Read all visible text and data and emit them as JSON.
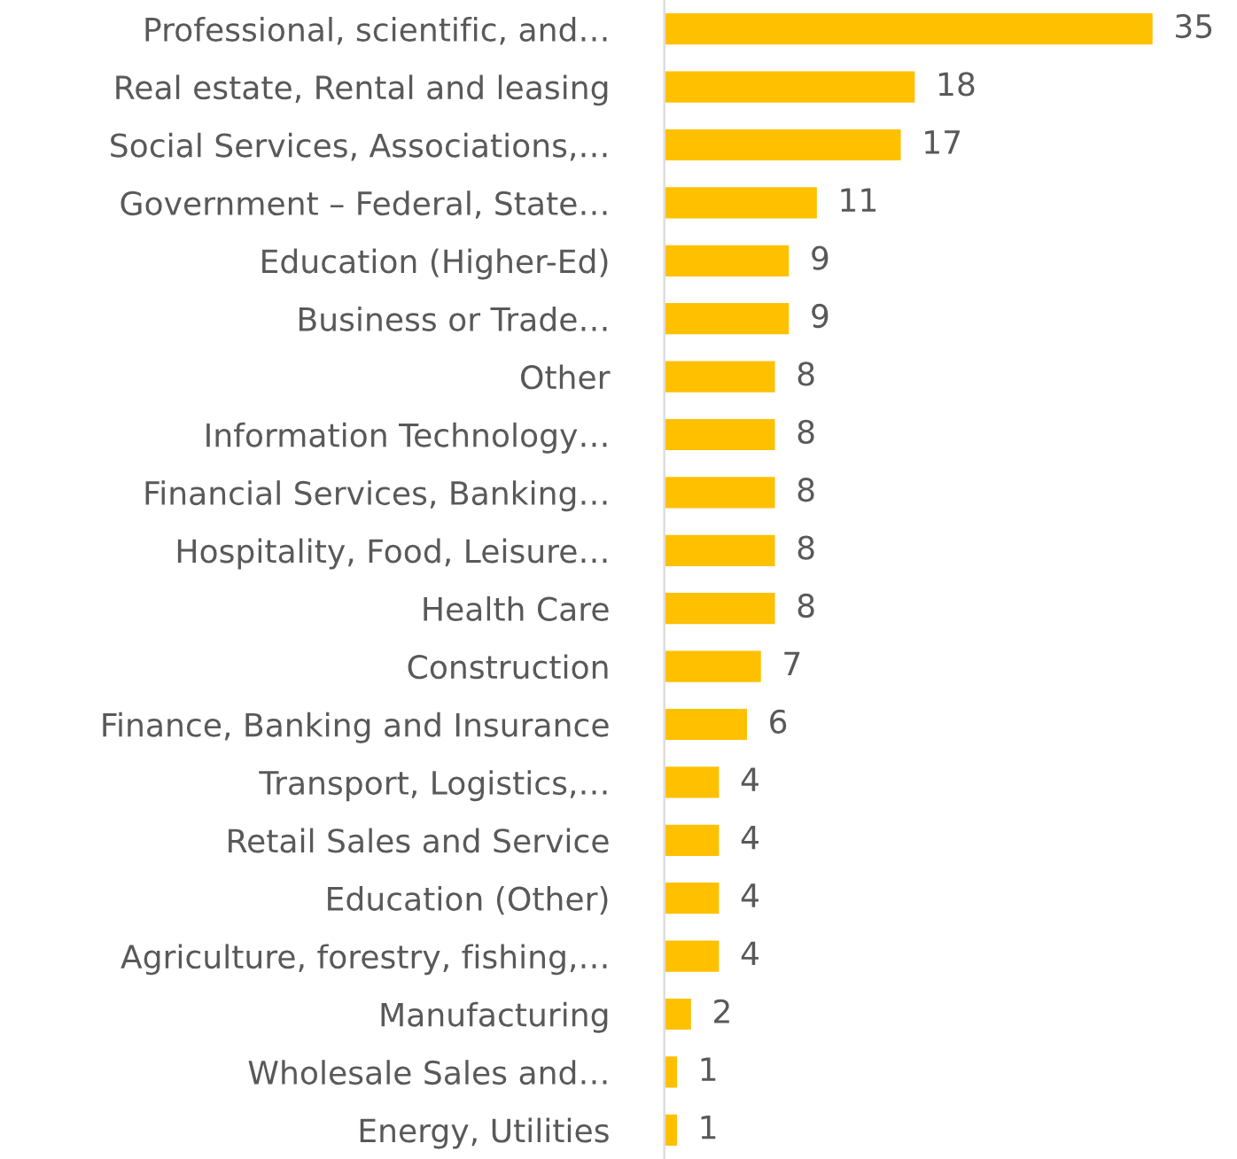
{
  "chart_data": {
    "type": "bar",
    "orientation": "horizontal",
    "categories": [
      "Professional, scientific, and…",
      "Real estate, Rental and leasing",
      "Social Services, Associations,…",
      "Government – Federal, State…",
      "Education (Higher-Ed)",
      "Business or Trade…",
      "Other",
      "Information Technology…",
      "Financial Services, Banking…",
      "Hospitality, Food, Leisure…",
      "Health Care",
      "Construction",
      "Finance, Banking and Insurance",
      "Transport, Logistics,…",
      "Retail Sales and Service",
      "Education (Other)",
      "Agriculture, forestry, fishing,…",
      "Manufacturing",
      "Wholesale Sales and…",
      "Energy, Utilities"
    ],
    "values": [
      35,
      18,
      17,
      11,
      9,
      9,
      8,
      8,
      8,
      8,
      8,
      7,
      6,
      4,
      4,
      4,
      4,
      2,
      1,
      1
    ],
    "color": "#ffc000",
    "data_labels": true,
    "grid": false,
    "legend": false
  }
}
